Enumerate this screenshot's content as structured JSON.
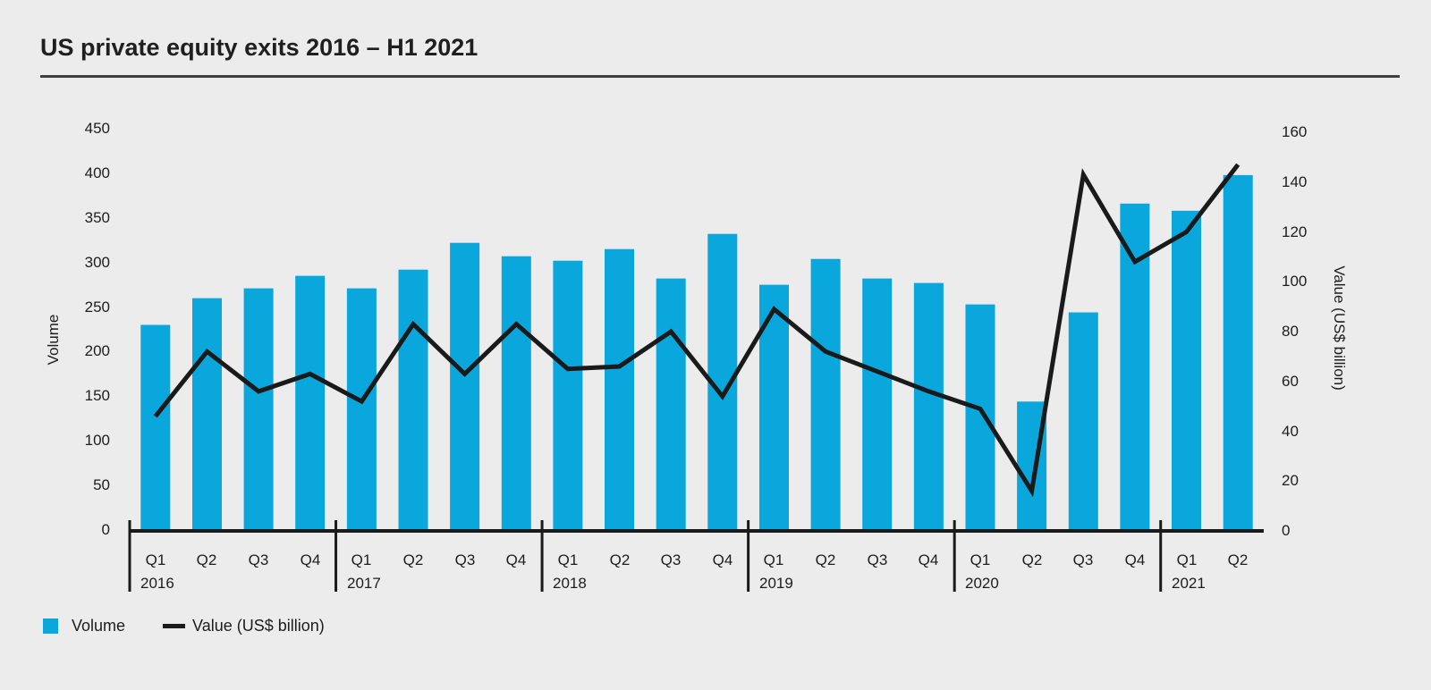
{
  "title": "US private equity exits 2016 – H1 2021",
  "legend": {
    "volume": "Volume",
    "value": "Value (US$ billion)"
  },
  "colors": {
    "background": "#ececec",
    "bar": "#0aa7dc",
    "line": "#1a1a1a",
    "axis": "#1a1a1a",
    "rule": "#3f3f3f",
    "text": "#1d1d1d"
  },
  "chart_data": {
    "type": "bar",
    "title": "US private equity exits 2016 – H1 2021",
    "xlabel": "",
    "ylabel_left": "Volume",
    "ylabel_right": "Value (US$ billion)",
    "grid": false,
    "legend_position": "bottom-left",
    "left_axis": {
      "min": 0,
      "max": 450,
      "ticks": [
        0,
        50,
        100,
        150,
        200,
        250,
        300,
        350,
        400,
        450
      ]
    },
    "right_axis": {
      "min": 0,
      "max": 160,
      "ticks": [
        0,
        20,
        40,
        60,
        80,
        100,
        120,
        140,
        160
      ]
    },
    "groups": [
      {
        "year": "2016",
        "quarters": [
          "Q1",
          "Q2",
          "Q3",
          "Q4"
        ]
      },
      {
        "year": "2017",
        "quarters": [
          "Q1",
          "Q2",
          "Q3",
          "Q4"
        ]
      },
      {
        "year": "2018",
        "quarters": [
          "Q1",
          "Q2",
          "Q3",
          "Q4"
        ]
      },
      {
        "year": "2019",
        "quarters": [
          "Q1",
          "Q2",
          "Q3",
          "Q4"
        ]
      },
      {
        "year": "2020",
        "quarters": [
          "Q1",
          "Q2",
          "Q3",
          "Q4"
        ]
      },
      {
        "year": "2021",
        "quarters": [
          "Q1",
          "Q2"
        ]
      }
    ],
    "categories": [
      "Q1 2016",
      "Q2 2016",
      "Q3 2016",
      "Q4 2016",
      "Q1 2017",
      "Q2 2017",
      "Q3 2017",
      "Q4 2017",
      "Q1 2018",
      "Q2 2018",
      "Q3 2018",
      "Q4 2018",
      "Q1 2019",
      "Q2 2019",
      "Q3 2019",
      "Q4 2019",
      "Q1 2020",
      "Q2 2020",
      "Q3 2020",
      "Q4 2020",
      "Q1 2021",
      "Q2 2021"
    ],
    "series": [
      {
        "name": "Volume",
        "type": "bar",
        "axis": "left",
        "values": [
          231,
          261,
          272,
          286,
          272,
          293,
          323,
          308,
          303,
          316,
          283,
          333,
          276,
          305,
          283,
          278,
          254,
          145,
          245,
          367,
          359,
          399
        ]
      },
      {
        "name": "Value (US$ billion)",
        "type": "line",
        "axis": "right",
        "values": [
          46,
          72,
          56,
          63,
          52,
          83,
          63,
          83,
          65,
          66,
          80,
          54,
          89,
          72,
          64,
          56,
          49,
          16,
          143,
          108,
          120,
          147
        ]
      }
    ]
  }
}
